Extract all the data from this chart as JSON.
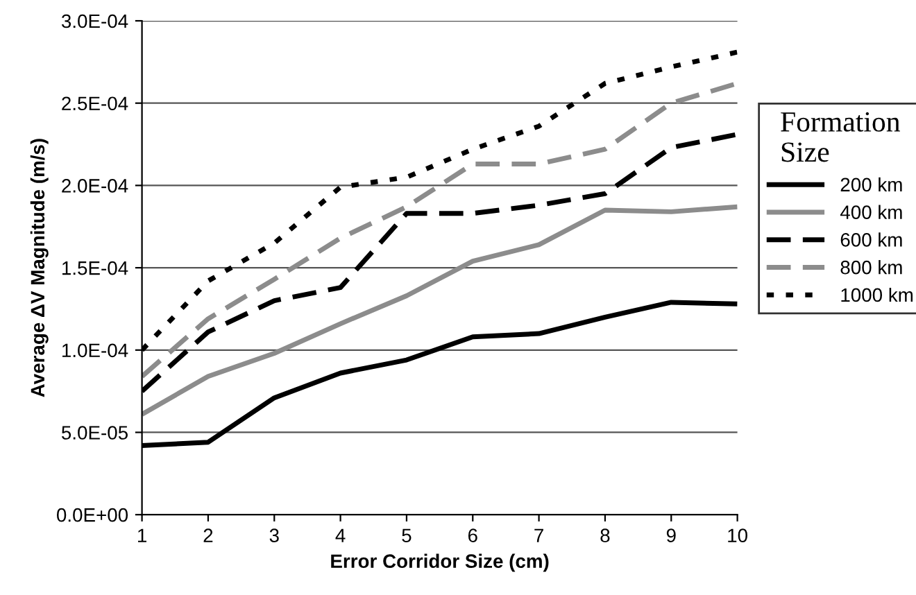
{
  "chart_data": {
    "type": "line",
    "xlabel": "Error Corridor Size (cm)",
    "ylabel": "Average ΔV Magnitude (m/s)",
    "legend_title": "Formation\nSize",
    "legend": "right",
    "x": [
      1,
      2,
      3,
      4,
      5,
      6,
      7,
      8,
      9,
      10
    ],
    "xlim": [
      1,
      10
    ],
    "xticks": [
      1,
      2,
      3,
      4,
      5,
      6,
      7,
      8,
      9,
      10
    ],
    "ylim": [
      0,
      0.0003
    ],
    "yticks": [
      {
        "value": 0,
        "label": "0.0E+00"
      },
      {
        "value": 5e-05,
        "label": "5.0E-05"
      },
      {
        "value": 0.0001,
        "label": "1.0E-04"
      },
      {
        "value": 0.00015,
        "label": "1.5E-04"
      },
      {
        "value": 0.0002,
        "label": "2.0E-04"
      },
      {
        "value": 0.00025,
        "label": "2.5E-04"
      },
      {
        "value": 0.0003,
        "label": "3.0E-04"
      }
    ],
    "grid": "y",
    "marker": "none",
    "series": [
      {
        "name": "200 km",
        "color": "#000000",
        "line_style": "solid",
        "values": [
          4.2e-05,
          4.4e-05,
          7.1e-05,
          8.6e-05,
          9.4e-05,
          0.000108,
          0.00011,
          0.00012,
          0.000129,
          0.000128
        ]
      },
      {
        "name": "400 km",
        "color": "#8c8c8c",
        "line_style": "solid",
        "values": [
          6.1e-05,
          8.4e-05,
          9.8e-05,
          0.000116,
          0.000133,
          0.000154,
          0.000164,
          0.000185,
          0.000184,
          0.000187
        ]
      },
      {
        "name": "600 km",
        "color": "#000000",
        "line_style": "dashed",
        "values": [
          7.5e-05,
          0.000111,
          0.00013,
          0.000138,
          0.000183,
          0.000183,
          0.000188,
          0.000195,
          0.000223,
          0.000231
        ]
      },
      {
        "name": "800 km",
        "color": "#8c8c8c",
        "line_style": "dashed",
        "values": [
          8.4e-05,
          0.000119,
          0.000143,
          0.000168,
          0.000187,
          0.000213,
          0.000213,
          0.000222,
          0.00025,
          0.000262
        ]
      },
      {
        "name": "1000 km",
        "color": "#000000",
        "line_style": "dotted",
        "values": [
          0.0001,
          0.000142,
          0.000165,
          0.000199,
          0.000205,
          0.000222,
          0.000236,
          0.000262,
          0.000272,
          0.000281
        ]
      }
    ]
  }
}
